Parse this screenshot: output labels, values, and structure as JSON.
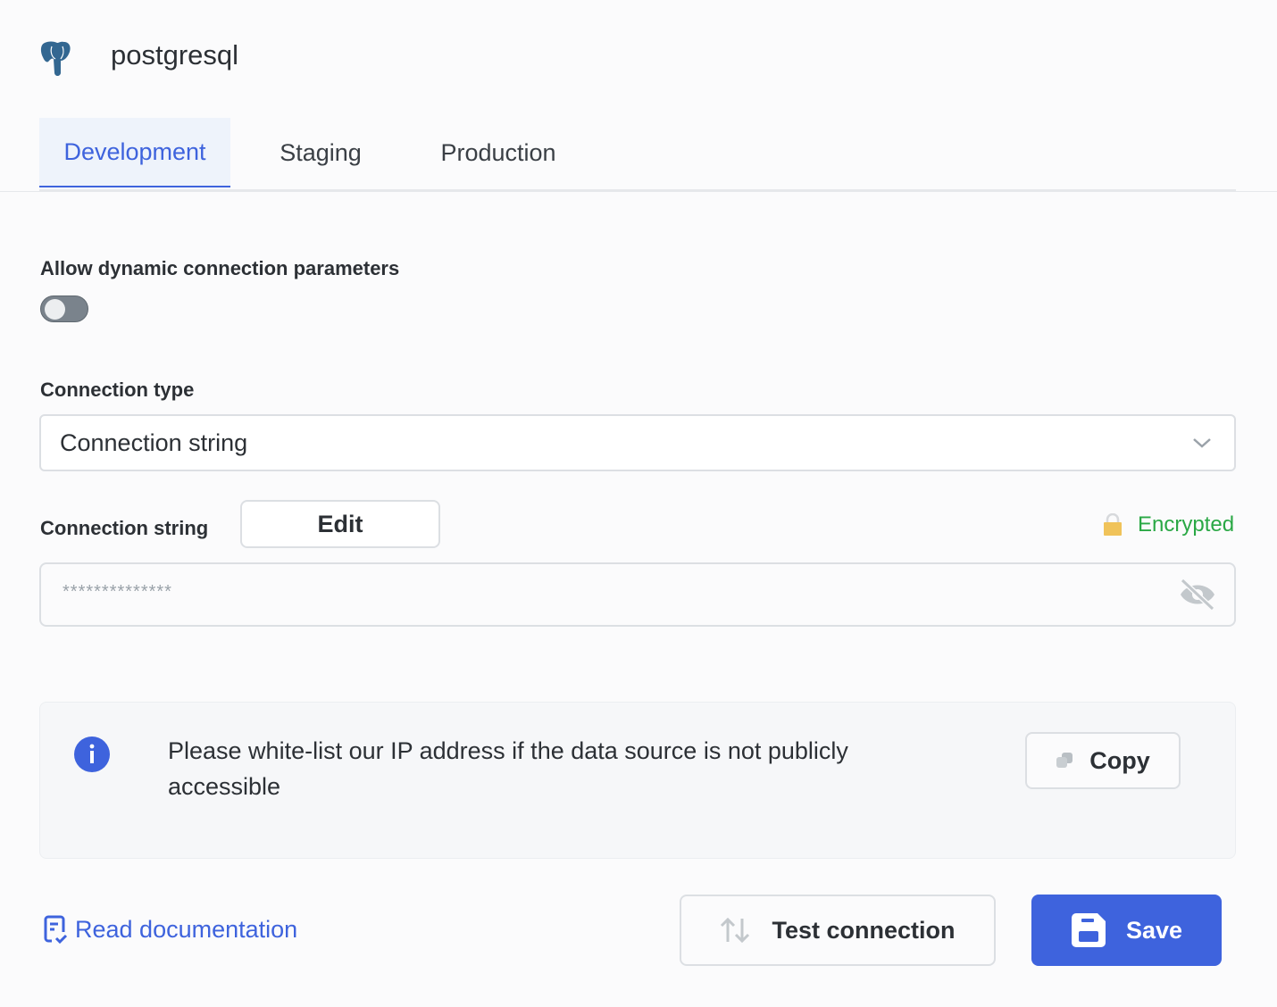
{
  "header": {
    "title": "postgresql",
    "logo_icon": "postgresql-elephant-icon"
  },
  "tabs": [
    {
      "label": "Development",
      "active": true
    },
    {
      "label": "Staging",
      "active": false
    },
    {
      "label": "Production",
      "active": false
    }
  ],
  "dynamic_params": {
    "label": "Allow dynamic connection parameters",
    "enabled": false
  },
  "connection_type": {
    "label": "Connection type",
    "value": "Connection string"
  },
  "connection_string": {
    "label": "Connection string",
    "edit_label": "Edit",
    "encrypted_label": "Encrypted",
    "value": "**************"
  },
  "info": {
    "text": "Please white-list our IP address if the data source is not publicly accessible",
    "copy_label": "Copy"
  },
  "footer": {
    "docs_label": "Read documentation",
    "test_label": "Test connection",
    "save_label": "Save"
  },
  "colors": {
    "accent": "#3e63dd",
    "encrypted": "#2aa845",
    "lock": "#f0c35a"
  }
}
